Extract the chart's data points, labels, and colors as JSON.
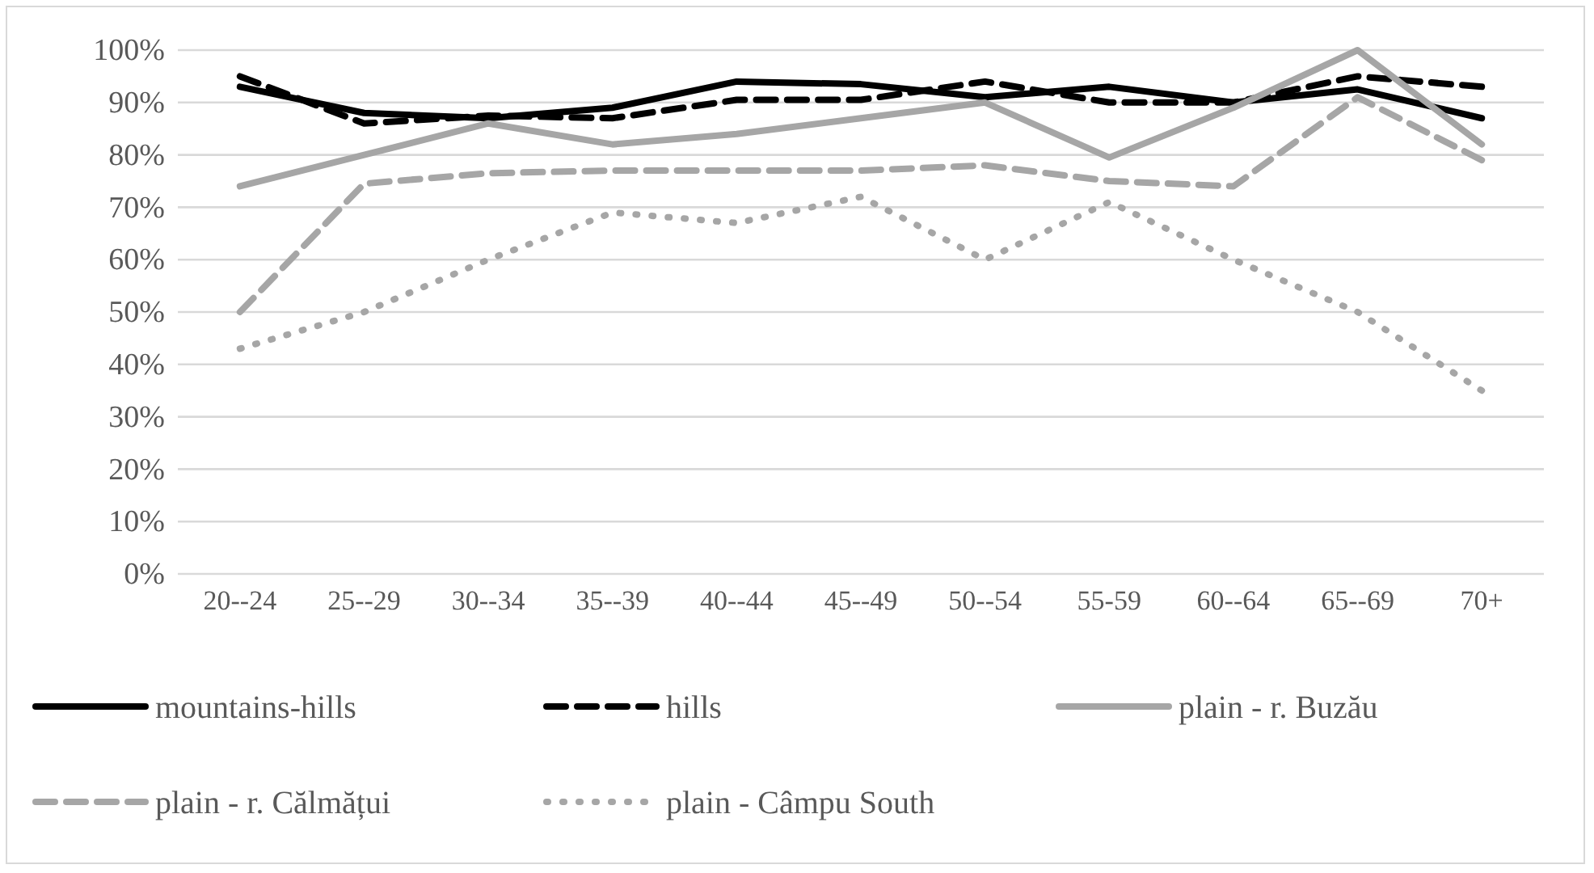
{
  "chart_data": {
    "type": "line",
    "categories": [
      "20--24",
      "25--29",
      "30--34",
      "35--39",
      "40--44",
      "45--49",
      "50--54",
      "55-59",
      "60--64",
      "65--69",
      "70+"
    ],
    "ylim": [
      0,
      1
    ],
    "yticks": [
      {
        "value": 0,
        "label": "0%"
      },
      {
        "value": 0.1,
        "label": "10%"
      },
      {
        "value": 0.2,
        "label": "20%"
      },
      {
        "value": 0.3,
        "label": "30%"
      },
      {
        "value": 0.4,
        "label": "40%"
      },
      {
        "value": 0.5,
        "label": "50%"
      },
      {
        "value": 0.6,
        "label": "60%"
      },
      {
        "value": 0.7,
        "label": "70%"
      },
      {
        "value": 0.8,
        "label": "80%"
      },
      {
        "value": 0.9,
        "label": "90%"
      },
      {
        "value": 1,
        "label": "100%"
      }
    ],
    "grid": "y",
    "legend": "bottom",
    "marker": "none",
    "series": [
      {
        "name": "mountains-hills",
        "color": "#000000",
        "line_style": "solid",
        "values": [
          0.93,
          0.88,
          0.87,
          0.89,
          0.94,
          0.935,
          0.91,
          0.93,
          0.9,
          0.925,
          0.87
        ]
      },
      {
        "name": "hills",
        "color": "#000000",
        "line_style": "dashed",
        "values": [
          0.95,
          0.86,
          0.875,
          0.87,
          0.905,
          0.905,
          0.94,
          0.9,
          0.9,
          0.95,
          0.93
        ]
      },
      {
        "name": "plain - r. Buzău",
        "color": "#a6a6a6",
        "line_style": "solid",
        "values": [
          0.74,
          0.8,
          0.86,
          0.82,
          0.84,
          0.87,
          0.9,
          0.795,
          0.89,
          1.0,
          0.82
        ]
      },
      {
        "name": "plain - r. Călmățui",
        "color": "#a6a6a6",
        "line_style": "dashed",
        "values": [
          0.5,
          0.745,
          0.765,
          0.77,
          0.77,
          0.77,
          0.78,
          0.75,
          0.74,
          0.91,
          0.79
        ]
      },
      {
        "name": "plain - Câmpu South",
        "color": "#a6a6a6",
        "line_style": "dotted",
        "values": [
          0.43,
          0.5,
          0.6,
          0.69,
          0.67,
          0.72,
          0.6,
          0.71,
          0.6,
          0.5,
          0.35
        ]
      }
    ]
  }
}
